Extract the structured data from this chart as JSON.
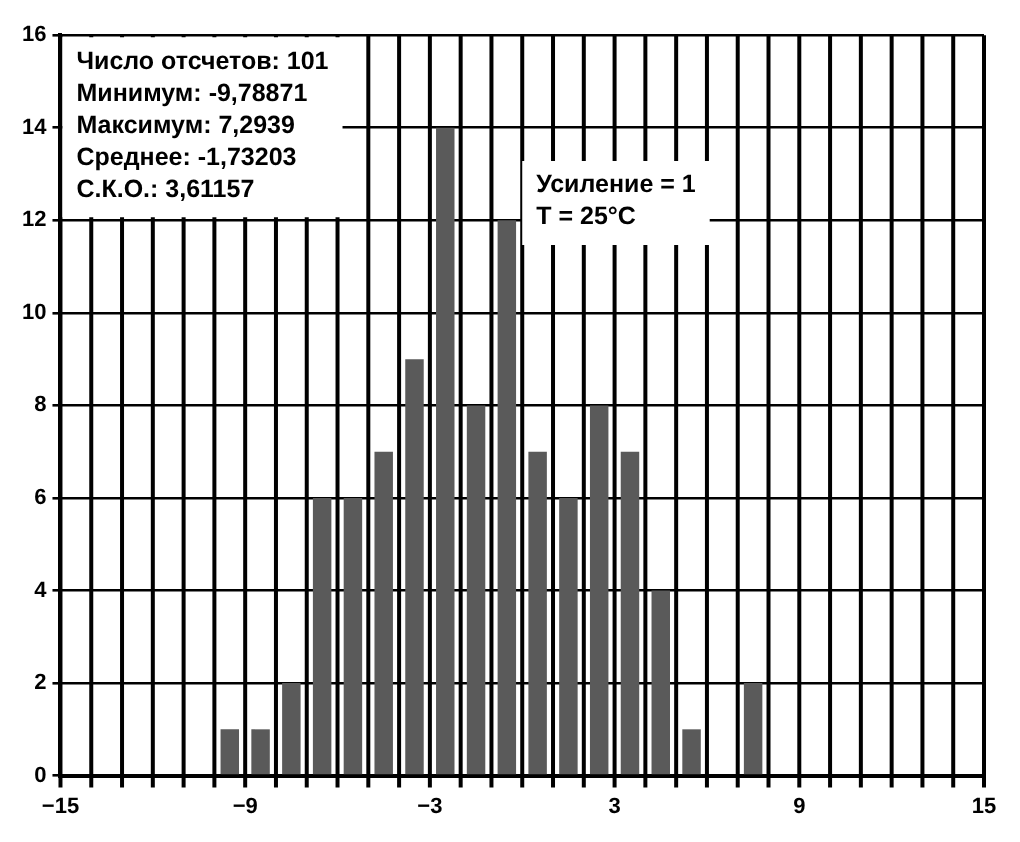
{
  "chart_data": {
    "type": "histogram",
    "bins": [
      -10,
      -9,
      -8,
      -7,
      -6,
      -5,
      -4,
      -3,
      -2,
      -1,
      0,
      1,
      2,
      3,
      4,
      5,
      6,
      7,
      8
    ],
    "values": [
      1,
      1,
      2,
      6,
      6,
      7,
      9,
      14,
      8,
      12,
      7,
      6,
      8,
      7,
      4,
      1,
      0,
      2
    ],
    "color": "#5a5a5a",
    "xlim": [
      -15,
      15
    ],
    "xticks": [
      -15,
      {
        "value": -14,
        "label": null
      },
      {
        "value": -13,
        "label": null
      },
      {
        "value": -12,
        "label": null
      },
      {
        "value": -11,
        "label": null
      },
      {
        "value": -10,
        "label": null
      },
      -9,
      {
        "value": -8,
        "label": null
      },
      {
        "value": -7,
        "label": null
      },
      {
        "value": -6,
        "label": null
      },
      {
        "value": -5,
        "label": null
      },
      {
        "value": -4,
        "label": null
      },
      -3,
      {
        "value": -2,
        "label": null
      },
      {
        "value": -1,
        "label": null
      },
      {
        "value": 0,
        "label": null
      },
      {
        "value": 1,
        "label": null
      },
      {
        "value": 2,
        "label": null
      },
      3,
      {
        "value": 4,
        "label": null
      },
      {
        "value": 5,
        "label": null
      },
      {
        "value": 6,
        "label": null
      },
      {
        "value": 7,
        "label": null
      },
      {
        "value": 8,
        "label": null
      },
      9,
      {
        "value": 10,
        "label": null
      },
      {
        "value": 11,
        "label": null
      },
      {
        "value": 12,
        "label": null
      },
      {
        "value": 13,
        "label": null
      },
      {
        "value": 14,
        "label": null
      },
      15
    ],
    "ylim": [
      0,
      16
    ],
    "yticks": [
      0,
      2,
      4,
      6,
      8,
      10,
      12,
      14,
      16
    ],
    "grid": true,
    "annotations": [
      "Число отсчетов: 101",
      "Минимум: -9,78871",
      "Максимум: 7,2939",
      "Среднее: -1,73203",
      "С.К.О.: 3,61157",
      "Усиление = 1",
      "T = 25°C"
    ]
  }
}
